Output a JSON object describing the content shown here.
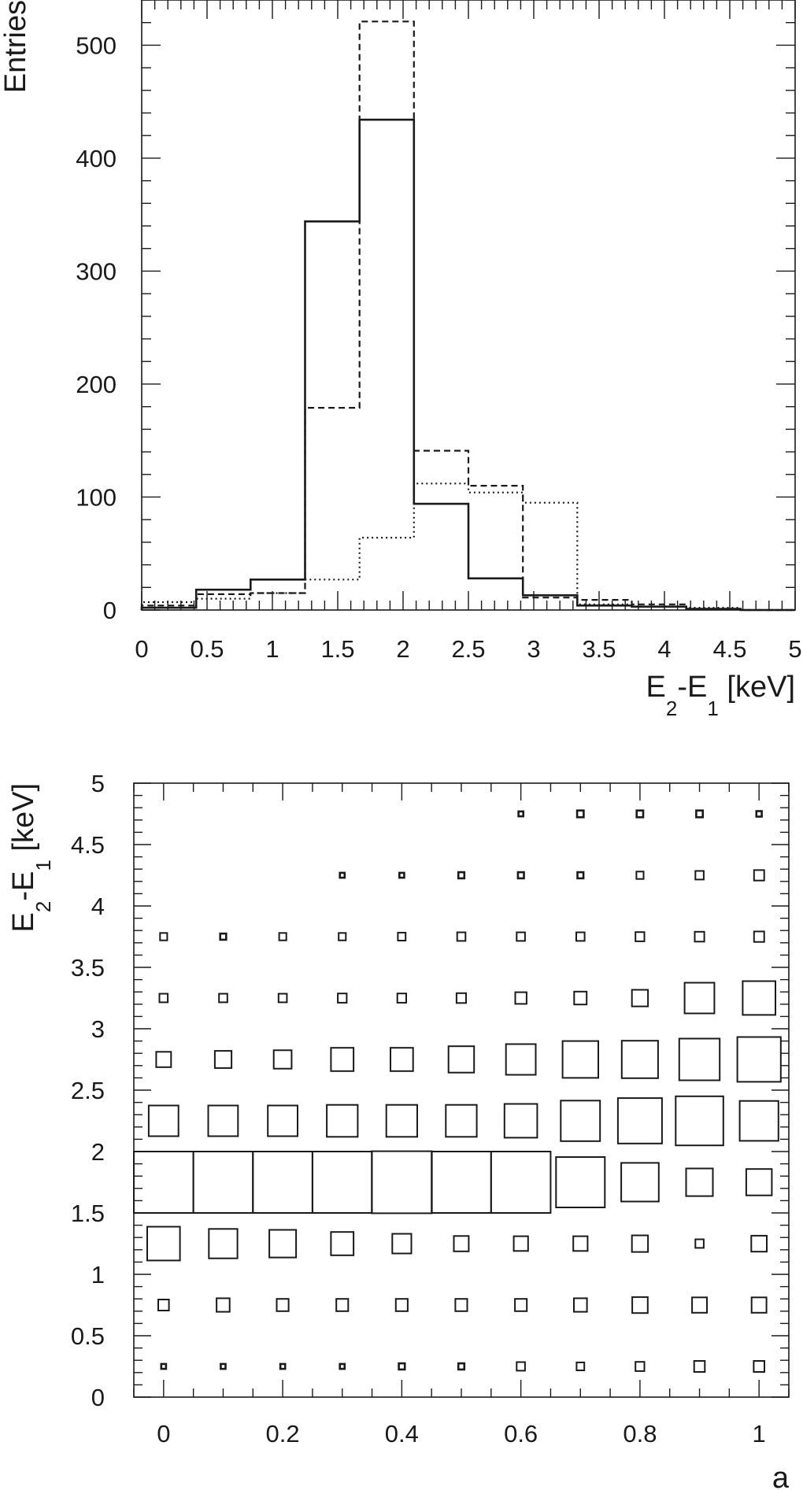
{
  "chart_data": [
    {
      "type": "histogram",
      "ylabel": "Entries",
      "xlabel": {
        "main1": "E",
        "sub1": "2",
        "main2": "-E",
        "sub2": "1",
        "unit": " [keV]"
      },
      "xlim": [
        0,
        5
      ],
      "ylim": [
        0,
        540
      ],
      "xticks": [
        "0",
        "0.5",
        "1",
        "1.5",
        "2",
        "2.5",
        "3",
        "3.5",
        "4",
        "4.5",
        "5"
      ],
      "yticks": [
        "0",
        "100",
        "200",
        "300",
        "400",
        "500"
      ],
      "bin_edges": [
        0,
        0.417,
        0.833,
        1.25,
        1.667,
        2.083,
        2.5,
        2.917,
        3.333,
        3.75,
        4.167,
        4.583,
        5
      ],
      "series": [
        {
          "style": "solid",
          "values": [
            2,
            18,
            27,
            344,
            434,
            94,
            28,
            13,
            4,
            3,
            1,
            0
          ]
        },
        {
          "style": "dashed",
          "values": [
            4,
            14,
            15,
            179,
            521,
            141,
            110,
            11,
            9,
            5,
            1,
            0
          ]
        },
        {
          "style": "dotted",
          "values": [
            7,
            10,
            15,
            27,
            64,
            112,
            104,
            95,
            5,
            3,
            2,
            0
          ]
        }
      ]
    },
    {
      "type": "box-heatmap",
      "xlabel": "a",
      "ylabel": {
        "main1": "E",
        "sub1": "2",
        "main2": "-E",
        "sub2": "1",
        "unit": " [keV]"
      },
      "xlim": [
        -0.05,
        1.05
      ],
      "ylim": [
        0,
        5
      ],
      "xticks": [
        "0",
        "0.2",
        "0.4",
        "0.6",
        "0.8",
        "1"
      ],
      "yticks": [
        "0",
        "0.5",
        "1",
        "1.5",
        "2",
        "2.5",
        "3",
        "3.5",
        "4",
        "4.5",
        "5"
      ],
      "x": [
        0,
        0.1,
        0.2,
        0.3,
        0.4,
        0.5,
        0.6,
        0.7,
        0.8,
        0.9,
        1.0
      ],
      "y": [
        0.25,
        0.75,
        1.25,
        1.75,
        2.25,
        2.75,
        3.25,
        3.75,
        4.25,
        4.75
      ],
      "relative_size": [
        [
          0.08,
          0.08,
          0.08,
          0.08,
          0.1,
          0.1,
          0.14,
          0.13,
          0.15,
          0.18,
          0.18
        ],
        [
          0.18,
          0.22,
          0.2,
          0.2,
          0.2,
          0.2,
          0.2,
          0.22,
          0.26,
          0.25,
          0.25
        ],
        [
          0.55,
          0.48,
          0.45,
          0.38,
          0.32,
          0.25,
          0.24,
          0.24,
          0.27,
          0.14,
          0.26
        ],
        [
          1.0,
          1.0,
          1.0,
          1.0,
          1.01,
          1.0,
          1.0,
          0.82,
          0.63,
          0.45,
          0.43
        ],
        [
          0.5,
          0.5,
          0.5,
          0.52,
          0.52,
          0.52,
          0.55,
          0.66,
          0.74,
          0.8,
          0.65
        ],
        [
          0.25,
          0.28,
          0.3,
          0.38,
          0.38,
          0.43,
          0.5,
          0.6,
          0.61,
          0.68,
          0.73
        ],
        [
          0.14,
          0.14,
          0.14,
          0.15,
          0.15,
          0.16,
          0.19,
          0.21,
          0.27,
          0.5,
          0.55
        ],
        [
          0.12,
          0.1,
          0.12,
          0.12,
          0.13,
          0.14,
          0.14,
          0.14,
          0.15,
          0.16,
          0.17
        ],
        [
          0.0,
          0.0,
          0.0,
          0.08,
          0.08,
          0.1,
          0.1,
          0.1,
          0.12,
          0.14,
          0.17
        ],
        [
          0.0,
          0.0,
          0.0,
          0.0,
          0.0,
          0.0,
          0.08,
          0.11,
          0.11,
          0.11,
          0.09
        ]
      ]
    }
  ]
}
